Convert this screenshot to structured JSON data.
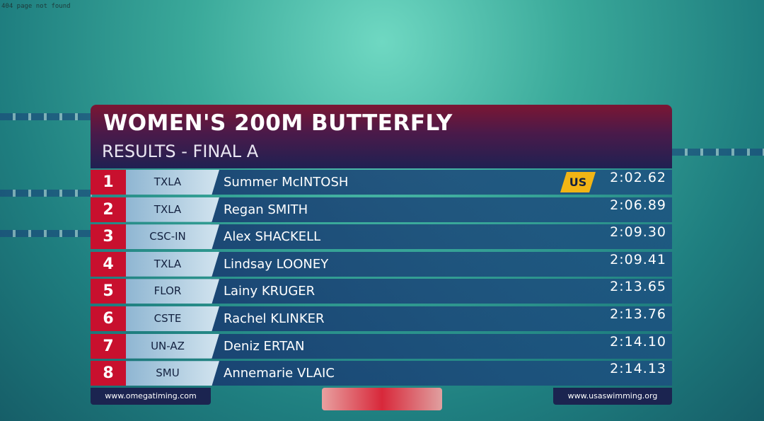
{
  "page_note": "404 page not found",
  "header": {
    "title": "WOMEN'S 200M BUTTERFLY",
    "subtitle": "RESULTS - FINAL A"
  },
  "results": [
    {
      "rank": 1,
      "team": "TXLA",
      "name": "Summer McINTOSH",
      "record": "US",
      "time": "2:02.62"
    },
    {
      "rank": 2,
      "team": "TXLA",
      "name": "Regan SMITH",
      "time": "2:06.89"
    },
    {
      "rank": 3,
      "team": "CSC-IN",
      "name": "Alex SHACKELL",
      "time": "2:09.30"
    },
    {
      "rank": 4,
      "team": "TXLA",
      "name": "Lindsay LOONEY",
      "time": "2:09.41"
    },
    {
      "rank": 5,
      "team": "FLOR",
      "name": "Lainy KRUGER",
      "time": "2:13.65"
    },
    {
      "rank": 6,
      "team": "CSTE",
      "name": "Rachel KLINKER",
      "time": "2:13.76"
    },
    {
      "rank": 7,
      "team": "UN-AZ",
      "name": "Deniz ERTAN",
      "time": "2:14.10"
    },
    {
      "rank": 8,
      "team": "SMU",
      "name": "Annemarie VLAIC",
      "time": "2:14.13"
    }
  ],
  "footer": {
    "left": "www.omegatiming.com",
    "right": "www.usaswimming.org"
  }
}
